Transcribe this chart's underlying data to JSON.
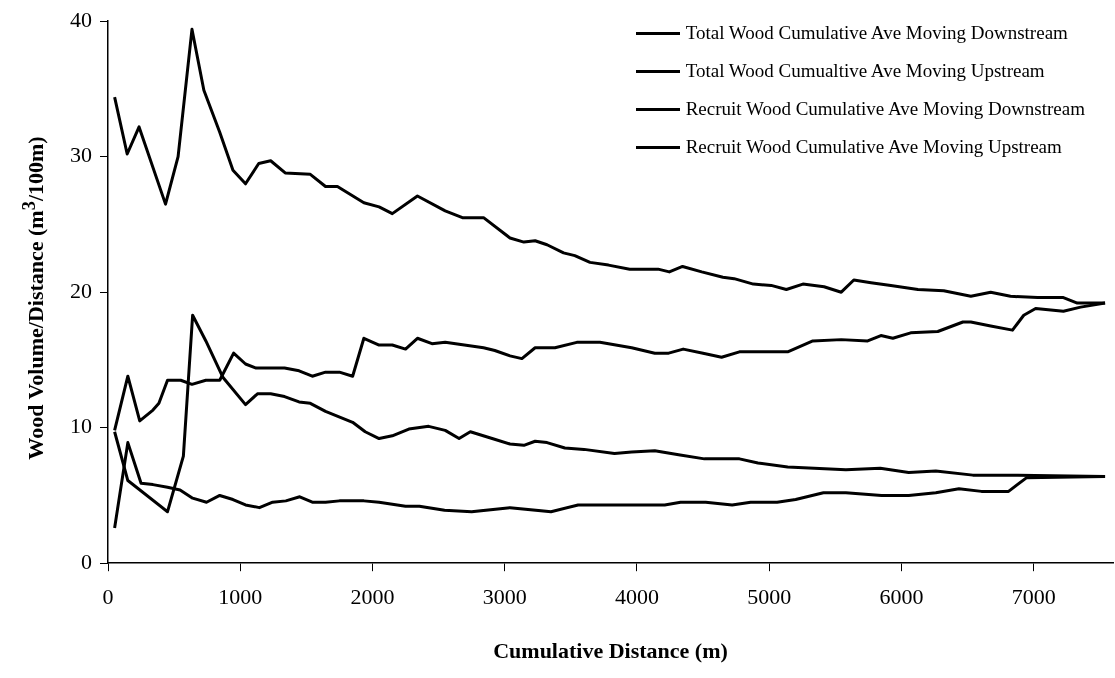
{
  "chart_data": {
    "type": "line",
    "xlabel": "Cumulative Distance (m)",
    "ylabel": "Wood Volume/Distance (m$^{3}$/100m)",
    "xlim": [
      0,
      7600
    ],
    "xticks": [
      0,
      1000,
      2000,
      3000,
      4000,
      5000,
      6000,
      7000
    ],
    "ylim": [
      0,
      40
    ],
    "yticks": [
      0,
      10,
      20,
      30,
      40
    ],
    "grid": false,
    "legend": "top right",
    "marker": "none",
    "line_style": "solid",
    "series": [
      {
        "name": "Total Wood Cumulative Ave Moving Downstream",
        "color": "#000000",
        "x": [
          50,
          145,
          235,
          435,
          530,
          635,
          725,
          845,
          945,
          1040,
          1140,
          1230,
          1340,
          1530,
          1645,
          1735,
          1935,
          2050,
          2150,
          2340,
          2550,
          2680,
          2840,
          3040,
          3145,
          3230,
          3320,
          3445,
          3530,
          3645,
          3785,
          3945,
          4160,
          4245,
          4345,
          4490,
          4650,
          4735,
          4880,
          5015,
          5130,
          5255,
          5415,
          5545,
          5640,
          5770,
          5920,
          6125,
          6320,
          6525,
          6675,
          6825,
          7030,
          7225,
          7330,
          7540
        ],
        "values": [
          34.4,
          30.2,
          32.2,
          26.5,
          30.0,
          39.4,
          34.9,
          31.8,
          29.0,
          28.0,
          29.5,
          29.7,
          28.8,
          28.7,
          27.8,
          27.8,
          26.6,
          26.3,
          25.8,
          27.1,
          26.0,
          25.5,
          25.5,
          24.0,
          23.7,
          23.8,
          23.5,
          22.9,
          22.7,
          22.2,
          22.0,
          21.7,
          21.7,
          21.5,
          21.9,
          21.5,
          21.1,
          21.0,
          20.6,
          20.5,
          20.2,
          20.6,
          20.4,
          20.0,
          20.9,
          20.7,
          20.5,
          20.2,
          20.1,
          19.7,
          20.0,
          19.7,
          19.6,
          19.6,
          19.2,
          19.2
        ]
      },
      {
        "name": "Total Wood Cumualtive Ave Moving Upstream",
        "color": "#000000",
        "x": [
          50,
          150,
          240,
          340,
          385,
          450,
          550,
          635,
          740,
          845,
          950,
          1040,
          1120,
          1335,
          1445,
          1545,
          1645,
          1750,
          1850,
          1935,
          2050,
          2150,
          2250,
          2340,
          2450,
          2550,
          2840,
          2925,
          3040,
          3130,
          3230,
          3380,
          3545,
          3720,
          3960,
          4135,
          4240,
          4350,
          4500,
          4640,
          4775,
          5015,
          5140,
          5330,
          5545,
          5745,
          5845,
          5935,
          6070,
          6275,
          6465,
          6525,
          6675,
          6840,
          6925,
          7015,
          7225,
          7355,
          7540
        ],
        "values": [
          9.8,
          13.8,
          10.5,
          11.3,
          11.8,
          13.5,
          13.5,
          13.2,
          13.5,
          13.5,
          15.5,
          14.7,
          14.4,
          14.4,
          14.2,
          13.8,
          14.1,
          14.1,
          13.8,
          16.6,
          16.1,
          16.1,
          15.8,
          16.6,
          16.2,
          16.3,
          15.9,
          15.7,
          15.3,
          15.1,
          15.9,
          15.9,
          16.3,
          16.3,
          15.9,
          15.5,
          15.5,
          15.8,
          15.5,
          15.2,
          15.6,
          15.6,
          15.6,
          16.4,
          16.5,
          16.4,
          16.8,
          16.6,
          17.0,
          17.1,
          17.8,
          17.8,
          17.5,
          17.2,
          18.3,
          18.8,
          18.6,
          18.9,
          19.2
        ]
      },
      {
        "name": "Recruit Wood Cumulative Ave Moving Downstream",
        "color": "#000000",
        "x": [
          50,
          150,
          450,
          570,
          640,
          740,
          870,
          1040,
          1130,
          1230,
          1335,
          1445,
          1530,
          1645,
          1850,
          1945,
          2050,
          2150,
          2275,
          2425,
          2550,
          2655,
          2740,
          2905,
          3040,
          3145,
          3230,
          3320,
          3455,
          3600,
          3830,
          3960,
          4135,
          4315,
          4510,
          4775,
          4915,
          5140,
          5340,
          5580,
          5840,
          6055,
          6260,
          6540,
          6880,
          7540
        ],
        "values": [
          9.7,
          6.1,
          3.8,
          7.9,
          18.3,
          16.4,
          13.7,
          11.7,
          12.5,
          12.5,
          12.3,
          11.9,
          11.8,
          11.2,
          10.4,
          9.7,
          9.2,
          9.4,
          9.9,
          10.1,
          9.8,
          9.2,
          9.7,
          9.2,
          8.8,
          8.7,
          9.0,
          8.9,
          8.5,
          8.4,
          8.1,
          8.2,
          8.3,
          8.0,
          7.7,
          7.7,
          7.4,
          7.1,
          7.0,
          6.9,
          7.0,
          6.7,
          6.8,
          6.5,
          6.5,
          6.4
        ]
      },
      {
        "name": "Recruit Wood Cumulative Ave Moving Upstream",
        "color": "#000000",
        "x": [
          50,
          150,
          250,
          340,
          450,
          545,
          640,
          745,
          845,
          945,
          1040,
          1145,
          1245,
          1345,
          1450,
          1545,
          1645,
          1750,
          1935,
          2050,
          2250,
          2355,
          2545,
          2750,
          3040,
          3350,
          3555,
          4210,
          4330,
          4520,
          4720,
          4860,
          5060,
          5200,
          5410,
          5580,
          5850,
          6055,
          6260,
          6435,
          6605,
          6810,
          6945,
          7540
        ],
        "values": [
          2.6,
          8.9,
          5.9,
          5.8,
          5.6,
          5.4,
          4.8,
          4.5,
          5.0,
          4.7,
          4.3,
          4.1,
          4.5,
          4.6,
          4.9,
          4.5,
          4.5,
          4.6,
          4.6,
          4.5,
          4.2,
          4.2,
          3.9,
          3.8,
          4.1,
          3.8,
          4.3,
          4.3,
          4.5,
          4.5,
          4.3,
          4.5,
          4.5,
          4.7,
          5.2,
          5.2,
          5.0,
          5.0,
          5.2,
          5.5,
          5.3,
          5.3,
          6.3,
          6.4
        ]
      }
    ]
  }
}
